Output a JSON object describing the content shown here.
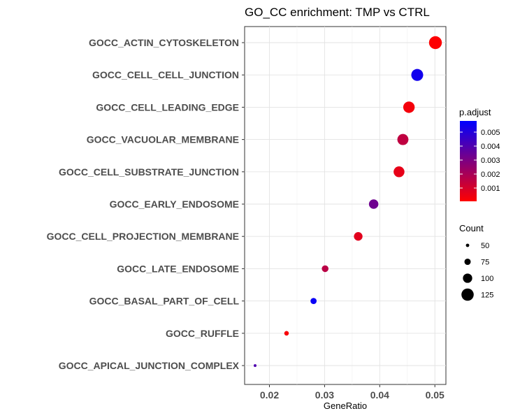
{
  "chart_data": {
    "type": "scatter",
    "title": "GO_CC enrichment: TMP vs CTRL",
    "xlabel": "GeneRatio",
    "xlim": [
      0.0155,
      0.052
    ],
    "xticks": [
      0.02,
      0.03,
      0.04,
      0.05
    ],
    "xtick_labels": [
      "0.02",
      "0.03",
      "0.04",
      "0.05"
    ],
    "categories": [
      "GOCC_ACTIN_CYTOSKELETON",
      "GOCC_CELL_CELL_JUNCTION",
      "GOCC_CELL_LEADING_EDGE",
      "GOCC_VACUOLAR_MEMBRANE",
      "GOCC_CELL_SUBSTRATE_JUNCTION",
      "GOCC_EARLY_ENDOSOME",
      "GOCC_CELL_PROJECTION_MEMBRANE",
      "GOCC_LATE_ENDOSOME",
      "GOCC_BASAL_PART_OF_CELL",
      "GOCC_RUFFLE",
      "GOCC_APICAL_JUNCTION_COMPLEX"
    ],
    "points": [
      {
        "term": "GOCC_ACTIN_CYTOSKELETON",
        "gene_ratio": 0.0501,
        "count": 130,
        "p_adjust": 0.0001
      },
      {
        "term": "GOCC_CELL_CELL_JUNCTION",
        "gene_ratio": 0.0468,
        "count": 122,
        "p_adjust": 0.0054
      },
      {
        "term": "GOCC_CELL_LEADING_EDGE",
        "gene_ratio": 0.0453,
        "count": 118,
        "p_adjust": 0.0003
      },
      {
        "term": "GOCC_VACUOLAR_MEMBRANE",
        "gene_ratio": 0.0442,
        "count": 115,
        "p_adjust": 0.0015
      },
      {
        "term": "GOCC_CELL_SUBSTRATE_JUNCTION",
        "gene_ratio": 0.0435,
        "count": 113,
        "p_adjust": 0.0006
      },
      {
        "term": "GOCC_EARLY_ENDOSOME",
        "gene_ratio": 0.0389,
        "count": 101,
        "p_adjust": 0.0033
      },
      {
        "term": "GOCC_CELL_PROJECTION_MEMBRANE",
        "gene_ratio": 0.0361,
        "count": 94,
        "p_adjust": 0.0007
      },
      {
        "term": "GOCC_LATE_ENDOSOME",
        "gene_ratio": 0.0301,
        "count": 78,
        "p_adjust": 0.0016
      },
      {
        "term": "GOCC_BASAL_PART_OF_CELL",
        "gene_ratio": 0.028,
        "count": 73,
        "p_adjust": 0.0056
      },
      {
        "term": "GOCC_RUFFLE",
        "gene_ratio": 0.0231,
        "count": 60,
        "p_adjust": 0.0002
      },
      {
        "term": "GOCC_APICAL_JUNCTION_COMPLEX",
        "gene_ratio": 0.0174,
        "count": 45,
        "p_adjust": 0.004
      }
    ],
    "color_legend": {
      "title": "p.adjust",
      "ticks": [
        0.005,
        0.004,
        0.003,
        0.002,
        0.001
      ],
      "tick_labels": [
        "0.005",
        "0.004",
        "0.003",
        "0.002",
        "0.001"
      ],
      "range": [
        5e-05,
        0.0058
      ],
      "low_color": "#ff0000",
      "high_color": "#0000ff"
    },
    "size_legend": {
      "title": "Count",
      "values": [
        50,
        75,
        100,
        125
      ],
      "labels": [
        "50",
        "75",
        "100",
        "125"
      ]
    },
    "grid": true,
    "legend_position": "right"
  }
}
